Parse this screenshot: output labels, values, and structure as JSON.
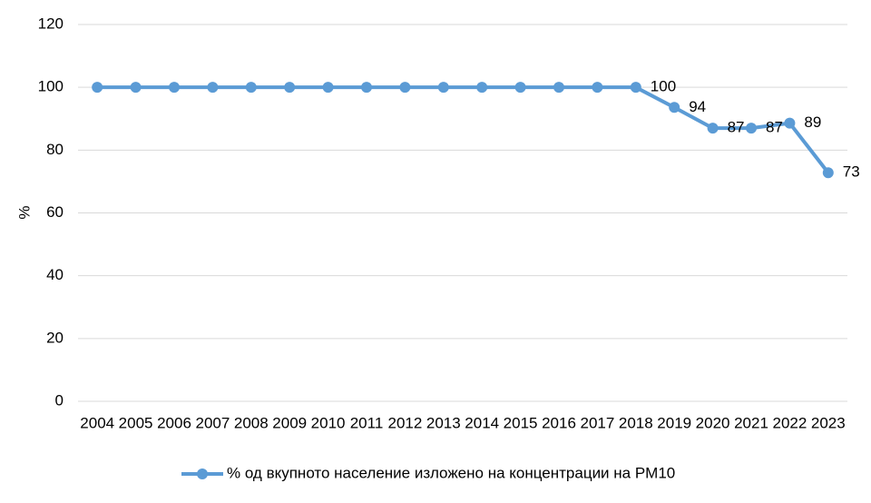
{
  "chart_data": {
    "type": "line",
    "y_label": "%",
    "categories": [
      "2004",
      "2005",
      "2006",
      "2007",
      "2008",
      "2009",
      "2010",
      "2011",
      "2012",
      "2013",
      "2014",
      "2015",
      "2016",
      "2017",
      "2018",
      "2019",
      "2020",
      "2021",
      "2022",
      "2023"
    ],
    "series": [
      {
        "name": "% од вкупното население изложено на концентрации на PM10",
        "color": "#5b9bd5",
        "values": [
          100,
          100,
          100,
          100,
          100,
          100,
          100,
          100,
          100,
          100,
          100,
          100,
          100,
          100,
          100,
          93.6,
          87,
          87,
          88.6,
          72.8
        ],
        "value_labels": [
          null,
          null,
          null,
          null,
          null,
          null,
          null,
          null,
          null,
          null,
          null,
          null,
          null,
          null,
          "100",
          "94",
          "87",
          "87",
          "89",
          "73"
        ]
      }
    ],
    "ylim": [
      0,
      120
    ],
    "yticks": [
      0,
      20,
      40,
      60,
      80,
      100,
      120
    ],
    "grid": true,
    "legend": "bottom"
  }
}
